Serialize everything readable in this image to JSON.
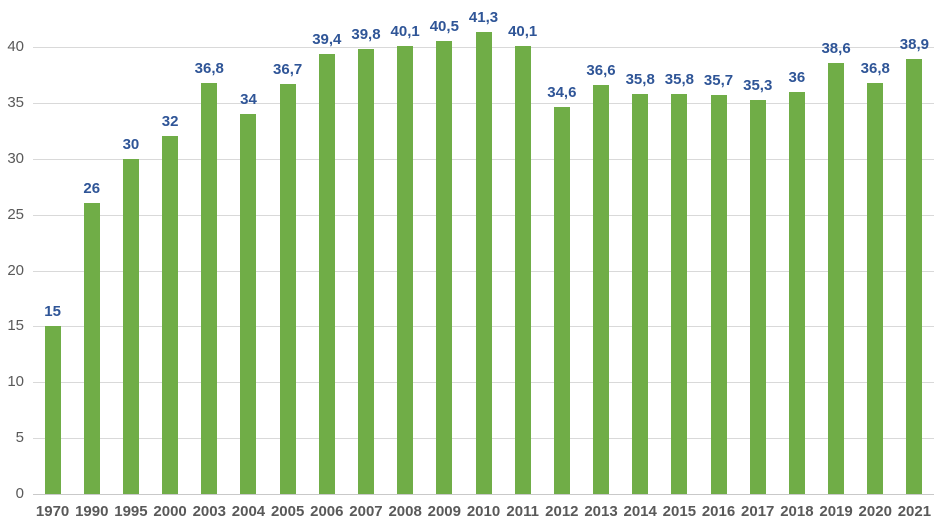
{
  "chart_data": {
    "type": "bar",
    "title": "",
    "xlabel": "",
    "ylabel": "",
    "categories": [
      "1970",
      "1990",
      "1995",
      "2000",
      "2003",
      "2004",
      "2005",
      "2006",
      "2007",
      "2008",
      "2009",
      "2010",
      "2011",
      "2012",
      "2013",
      "2014",
      "2015",
      "2016",
      "2017",
      "2018",
      "2019",
      "2020",
      "2021"
    ],
    "values": [
      15,
      26,
      30,
      32,
      36.8,
      34,
      36.7,
      39.4,
      39.8,
      40.1,
      40.5,
      41.3,
      40.1,
      34.6,
      36.6,
      35.8,
      35.8,
      35.7,
      35.3,
      36,
      38.6,
      36.8,
      38.9
    ],
    "value_labels": [
      "15",
      "26",
      "30",
      "32",
      "36,8",
      "34",
      "36,7",
      "39,4",
      "39,8",
      "40,1",
      "40,5",
      "41,3",
      "40,1",
      "34,6",
      "36,6",
      "35,8",
      "35,8",
      "35,7",
      "35,3",
      "36",
      "38,6",
      "36,8",
      "38,9"
    ],
    "y_ticks": [
      0,
      5,
      10,
      15,
      20,
      25,
      30,
      35,
      40
    ],
    "y_tick_labels": [
      "0",
      "5",
      "10",
      "15",
      "20",
      "25",
      "30",
      "35",
      "40"
    ],
    "ylim": [
      0,
      40
    ],
    "grid": "horizontal",
    "legend": "none",
    "decimal_separator": ",",
    "colors": {
      "bar": "#70AD47",
      "value_label": "#2F5597",
      "axis_text": "#595959",
      "gridline": "#D9D9D9",
      "axis_line": "#C9C9C9",
      "background": "#FFFFFF"
    }
  }
}
